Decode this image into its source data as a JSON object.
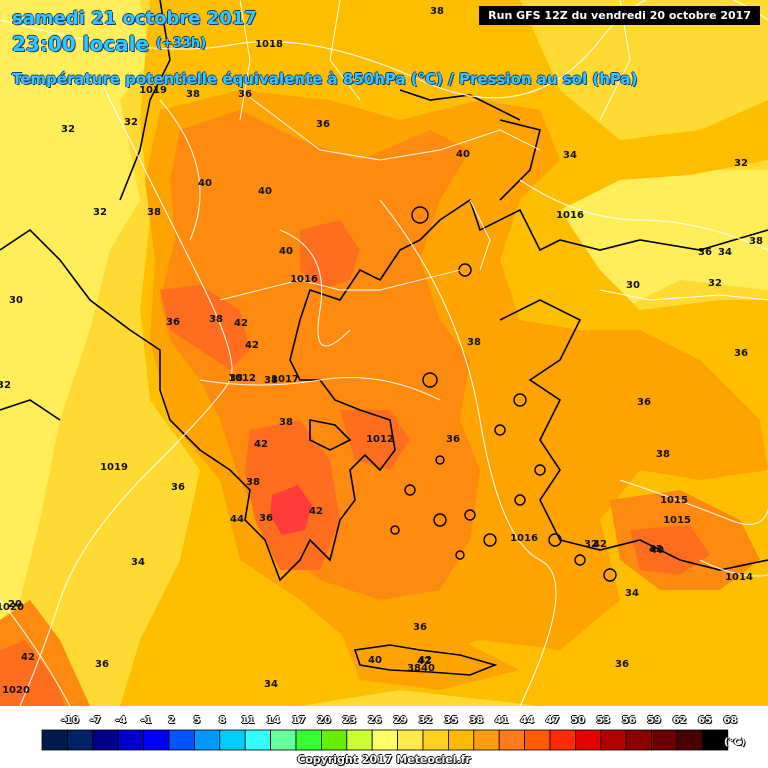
{
  "header": {
    "date": "samedi 21 octobre 2017",
    "time": "23:00 locale",
    "lead": "(+33h)",
    "parameter": "Température potentielle équivalente à 850hPa (°C) / Pression au sol (hPa)",
    "run": "Run GFS 12Z du vendredi 20 octobre 2017"
  },
  "legend": {
    "ticks": [
      "-10",
      "-7",
      "-4",
      "-1",
      "2",
      "5",
      "8",
      "11",
      "14",
      "17",
      "20",
      "23",
      "26",
      "29",
      "32",
      "35",
      "38",
      "41",
      "44",
      "47",
      "50",
      "53",
      "56",
      "59",
      "62",
      "65",
      "68"
    ],
    "colors": [
      "#001a4d",
      "#002266",
      "#00008b",
      "#0000cd",
      "#0000ff",
      "#0055ff",
      "#0099ff",
      "#00ccff",
      "#33ffff",
      "#66ff99",
      "#33ff33",
      "#66ee00",
      "#ccff33",
      "#ffff66",
      "#ffe94d",
      "#ffd21f",
      "#ffba00",
      "#ff9b0f",
      "#ff7a1a",
      "#ff5a00",
      "#ff2a00",
      "#e60000",
      "#b30000",
      "#8b0000",
      "#6b0000",
      "#4a0000",
      "#000000"
    ],
    "unit": "(°C)"
  },
  "copyright": "Copyright 2017 Meteociel.fr",
  "map": {
    "colors": {
      "t32": "#ffed5a",
      "t34": "#ffda33",
      "t36": "#ffbf00",
      "t38": "#ffa300",
      "t40": "#ff8a10",
      "t42": "#ff6e1f",
      "t44": "#ff3c3c",
      "sea_outline": "#000000",
      "isobar": "#ffffff"
    },
    "temperature_labels": [
      "38",
      "36",
      "38",
      "32",
      "32",
      "40",
      "36",
      "38",
      "32",
      "40",
      "40",
      "34",
      "32",
      "38",
      "36",
      "34",
      "30",
      "30",
      "32",
      "36",
      "36",
      "38",
      "42",
      "42",
      "38",
      "38",
      "1012",
      "38",
      "42",
      "38",
      "34",
      "36",
      "42",
      "36",
      "36",
      "38",
      "36",
      "38",
      "44",
      "42",
      "40",
      "1015",
      "32",
      "42",
      "40",
      "34",
      "36",
      "42",
      "3840",
      "34",
      "36",
      "40",
      "42",
      "20",
      "42",
      "36",
      "32"
    ],
    "pressure_labels": [
      "1018",
      "1019",
      "1016",
      "1016",
      "1017",
      "1019",
      "1016",
      "1015",
      "1014",
      "1020",
      "1020",
      "1012"
    ]
  }
}
